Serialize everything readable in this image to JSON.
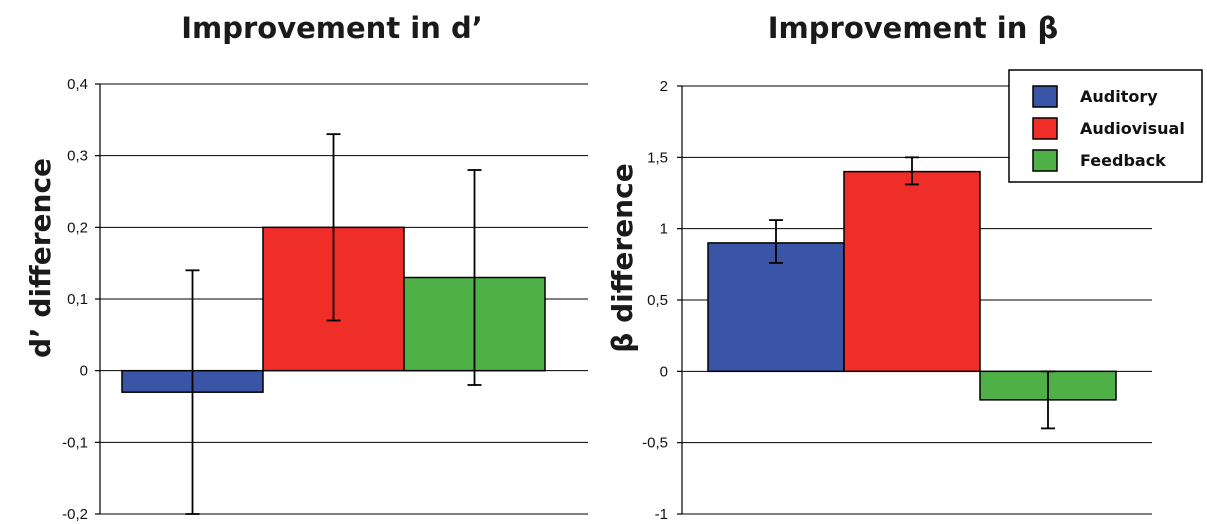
{
  "chart_data": [
    {
      "type": "bar",
      "title": "Improvement in d’",
      "ylabel": "d’ difference",
      "ylim": [
        -0.2,
        0.4
      ],
      "yticks": [
        -0.2,
        -0.1,
        0,
        0.1,
        0.2,
        0.3,
        0.4
      ],
      "ytick_labels": [
        "-0,2",
        "-0,1",
        "0",
        "0,1",
        "0,2",
        "0,3",
        "0,4"
      ],
      "grid": true,
      "categories": [
        "Auditory",
        "Audiovisual",
        "Feedback"
      ],
      "values": [
        -0.03,
        0.2,
        0.13
      ],
      "error_low": [
        -0.2,
        0.07,
        -0.02
      ],
      "error_high": [
        0.14,
        0.33,
        0.28
      ],
      "colors": [
        "#3a55a6",
        "#ef2e2a",
        "#50b048"
      ]
    },
    {
      "type": "bar",
      "title": "Improvement in β",
      "ylabel": "β difference",
      "ylim": [
        -1,
        2
      ],
      "yticks": [
        -1,
        -0.5,
        0,
        0.5,
        1,
        1.5,
        2
      ],
      "ytick_labels": [
        "-1",
        "-0,5",
        "0",
        "0,5",
        "1",
        "1,5",
        "2"
      ],
      "grid": true,
      "categories": [
        "Auditory",
        "Audiovisual",
        "Feedback"
      ],
      "values": [
        0.9,
        1.4,
        -0.2
      ],
      "error_low": [
        0.76,
        1.31,
        -0.4
      ],
      "error_high": [
        1.06,
        1.5,
        0.0
      ],
      "colors": [
        "#3a55a6",
        "#ef2e2a",
        "#50b048"
      ]
    }
  ],
  "legend": {
    "placement": "top-right",
    "items": [
      {
        "label": "Auditory",
        "color": "#3a55a6"
      },
      {
        "label": "Audiovisual",
        "color": "#ef2e2a"
      },
      {
        "label": "Feedback",
        "color": "#50b048"
      }
    ]
  }
}
